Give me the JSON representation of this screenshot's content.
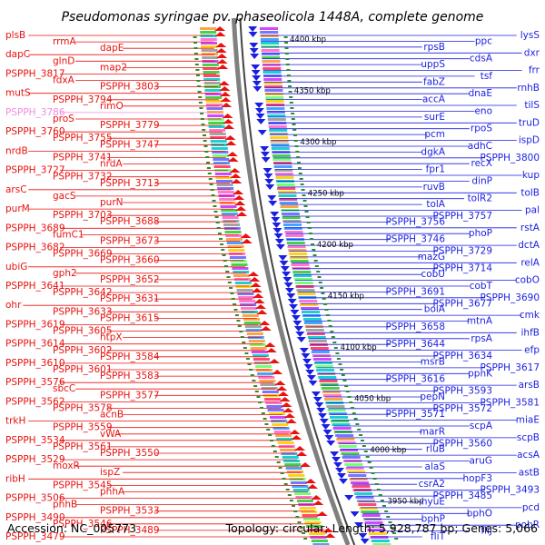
{
  "title": "Pseudomonas syringae pv. phaseolicola 1448A, complete genome",
  "accession": "Accession: NC_005773",
  "summary": "Topology: circular; Length: 5,928,787 bp; Genes: 5,066",
  "colors": {
    "reverse_strand": "#e8120f",
    "forward_strand": "#1a1fe0",
    "highlight": "#f28be0",
    "backbone": "#808080",
    "ticks": "#2e8b2e"
  },
  "kbp_ticks": [
    "4400 kbp",
    "4350 kbp",
    "4300 kbp",
    "4250 kbp",
    "4200 kbp",
    "4150 kbp",
    "4100 kbp",
    "4050 kbp",
    "4000 kbp",
    "3950 kbp"
  ],
  "reverse_strand_labels": [
    "plsB",
    "rrmA",
    "dapE",
    "dapC",
    "glnD",
    "map2",
    "PSPPH_3817",
    "fdxA",
    "PSPPH_3803",
    "mutS",
    "PSPPH_3794",
    "rimO",
    "PSPPH_3786",
    "proS",
    "PSPPH_3779",
    "PSPPH_3760",
    "PSPPH_3755",
    "PSPPH_3747",
    "nrdB",
    "PSPPH_3741",
    "nrdA",
    "PSPPH_3727",
    "PSPPH_3732",
    "PSPPH_3713",
    "arsC",
    "gacS",
    "purN",
    "purM",
    "PSPPH_3703",
    "PSPPH_3688",
    "PSPPH_3689",
    "fumC1",
    "PSPPH_3673",
    "PSPPH_3682",
    "PSPPH_3669",
    "PSPPH_3660",
    "ubiG",
    "gph2",
    "PSPPH_3652",
    "PSPPH_3641",
    "PSPPH_3642",
    "PSPPH_3631",
    "ohr",
    "PSPPH_3633",
    "PSPPH_3615",
    "PSPPH_3619",
    "PSPPH_3605",
    "htpX",
    "PSPPH_3614",
    "PSPPH_3602",
    "PSPPH_3584",
    "PSPPH_3610",
    "PSPPH_3601",
    "PSPPH_3583",
    "PSPPH_3576",
    "sbcC",
    "PSPPH_3577",
    "PSPPH_3562",
    "PSPPH_3578",
    "acnB",
    "trkH",
    "PSPPH_3559",
    "vWA",
    "PSPPH_3534",
    "PSPPH_3561",
    "PSPPH_3550",
    "PSPPH_3529",
    "moxR",
    "ispZ",
    "ribH",
    "PSPPH_3545",
    "phhA",
    "PSPPH_3506",
    "phhB",
    "PSPPH_3533",
    "PSPPH_3490",
    "PSPPH_3546",
    "PSPPH_3489",
    "PSPPH_3479"
  ],
  "forward_strand_labels": [
    "lysS",
    "ppc",
    "rpsB",
    "dxr",
    "cdsA",
    "uppS",
    "frr",
    "tsf",
    "fabZ",
    "rnhB",
    "dnaE",
    "accA",
    "tilS",
    "eno",
    "surE",
    "truD",
    "rpoS",
    "pcm",
    "ispD",
    "adhC",
    "dgkA",
    "PSPPH_3800",
    "recX",
    "fpr1",
    "kup",
    "dinP",
    "ruvB",
    "tolB",
    "tolR2",
    "tolA",
    "pal",
    "PSPPH_3757",
    "PSPPH_3756",
    "rstA",
    "phoP",
    "PSPPH_3746",
    "dctA",
    "PSPPH_3729",
    "mazG",
    "relA",
    "PSPPH_3714",
    "cobU",
    "cobO",
    "cobT",
    "PSPPH_3691",
    "PSPPH_3690",
    "PSPPH_3677",
    "bolA",
    "cmk",
    "mtnA",
    "PSPPH_3658",
    "ihfB",
    "rpsA",
    "PSPPH_3644",
    "efp",
    "PSPPH_3634",
    "msrB",
    "PSPPH_3617",
    "ppnK",
    "PSPPH_3616",
    "arsB",
    "PSPPH_3593",
    "pepN",
    "PSPPH_3581",
    "PSPPH_3572",
    "PSPPH_3571",
    "miaE",
    "scpA",
    "marR",
    "scpB",
    "PSPPH_3560",
    "rluB",
    "acsA",
    "aruG",
    "alaS",
    "astB",
    "hopF3",
    "csrA2",
    "PSPPH_3493",
    "PSPPH_3485",
    "hyuE",
    "pcd",
    "bphO",
    "bphP",
    "pobR",
    "fliJ",
    "fliT"
  ]
}
